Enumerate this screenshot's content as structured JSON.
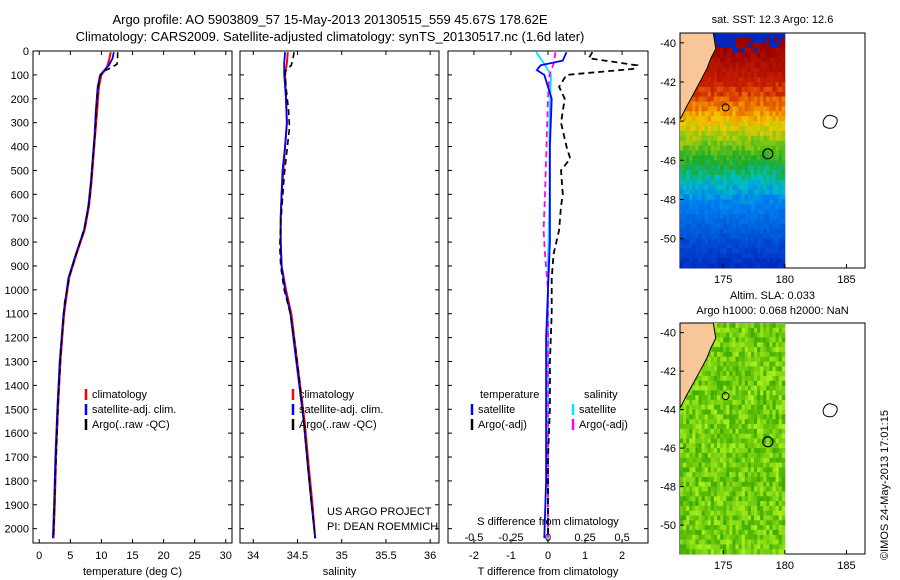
{
  "header": {
    "line1": "Argo profile: AO 5903809_57 15-May-2013 20130515_559 45.67S 178.62E",
    "line2": "Climatology: CARS2009. Satellite-adjusted climatology: synTS_20130517.nc (1.6d later)"
  },
  "credit": {
    "project": "US ARGO PROJECT",
    "pi": "PI: DEAN ROEMMICH",
    "imos": "©IMOS 24-May-2013 17:01:15"
  },
  "depth_ticks": [
    0,
    100,
    200,
    300,
    400,
    500,
    600,
    700,
    800,
    900,
    1000,
    1100,
    1200,
    1300,
    1400,
    1500,
    1600,
    1700,
    1800,
    1900,
    2000
  ],
  "colors": {
    "climatology": "#ff0000",
    "satellite": "#0000ff",
    "argo": "#000000",
    "sal_satellite": "#00e5ff",
    "sal_argo": "#ff00ff"
  },
  "chart_data": [
    {
      "type": "line",
      "xlabel": "temperature (deg C)",
      "x_ticks": [
        0,
        5,
        10,
        15,
        20,
        25,
        30
      ],
      "xlim": [
        -1,
        31
      ],
      "ylim": [
        2060,
        0
      ],
      "legend": [
        "climatology",
        "satellite-adj. clim.",
        "Argo(..raw -QC)"
      ],
      "series": [
        {
          "name": "climatology",
          "points": [
            [
              11.5,
              5
            ],
            [
              11.3,
              30
            ],
            [
              11.0,
              60
            ],
            [
              10.6,
              80
            ],
            [
              10.0,
              100
            ],
            [
              9.6,
              150
            ],
            [
              9.3,
              250
            ],
            [
              9.0,
              350
            ],
            [
              8.7,
              450
            ],
            [
              8.4,
              550
            ],
            [
              8.0,
              650
            ],
            [
              7.3,
              750
            ],
            [
              6.0,
              850
            ],
            [
              4.8,
              950
            ],
            [
              4.0,
              1100
            ],
            [
              3.4,
              1300
            ],
            [
              3.0,
              1500
            ],
            [
              2.7,
              1700
            ],
            [
              2.5,
              1900
            ],
            [
              2.3,
              2040
            ]
          ]
        },
        {
          "name": "satellite-adj. clim.",
          "points": [
            [
              12.0,
              5
            ],
            [
              11.8,
              30
            ],
            [
              11.2,
              60
            ],
            [
              10.5,
              80
            ],
            [
              9.8,
              100
            ],
            [
              9.4,
              150
            ],
            [
              9.1,
              250
            ],
            [
              8.9,
              350
            ],
            [
              8.6,
              450
            ],
            [
              8.3,
              550
            ],
            [
              7.9,
              650
            ],
            [
              7.2,
              750
            ],
            [
              5.9,
              850
            ],
            [
              4.7,
              950
            ],
            [
              3.9,
              1100
            ],
            [
              3.3,
              1300
            ],
            [
              2.9,
              1500
            ],
            [
              2.6,
              1700
            ],
            [
              2.4,
              1900
            ],
            [
              2.2,
              2040
            ]
          ]
        },
        {
          "name": "Argo(..raw -QC)",
          "points": [
            [
              12.6,
              5
            ],
            [
              12.6,
              30
            ],
            [
              12.5,
              55
            ],
            [
              11.6,
              70
            ],
            [
              10.3,
              85
            ],
            [
              9.7,
              110
            ],
            [
              9.3,
              200
            ],
            [
              9.1,
              300
            ],
            [
              8.8,
              400
            ],
            [
              8.5,
              500
            ],
            [
              8.1,
              620
            ],
            [
              7.4,
              730
            ],
            [
              6.2,
              830
            ],
            [
              5.0,
              930
            ],
            [
              4.1,
              1050
            ],
            [
              3.5,
              1250
            ],
            [
              3.1,
              1450
            ],
            [
              2.8,
              1650
            ],
            [
              2.5,
              1850
            ],
            [
              2.3,
              2040
            ]
          ]
        }
      ]
    },
    {
      "type": "line",
      "xlabel": "salinity",
      "x_ticks": [
        34,
        34.5,
        35,
        35.5,
        36
      ],
      "xlim": [
        33.85,
        36.1
      ],
      "ylim": [
        2060,
        0
      ],
      "legend": [
        "climatology",
        "satellite-adj. clim.",
        "Argo(..raw -QC)"
      ],
      "series": [
        {
          "name": "climatology",
          "points": [
            [
              34.39,
              5
            ],
            [
              34.38,
              50
            ],
            [
              34.36,
              100
            ],
            [
              34.37,
              200
            ],
            [
              34.38,
              300
            ],
            [
              34.36,
              400
            ],
            [
              34.34,
              500
            ],
            [
              34.32,
              600
            ],
            [
              34.31,
              700
            ],
            [
              34.31,
              800
            ],
            [
              34.32,
              900
            ],
            [
              34.37,
              1000
            ],
            [
              34.43,
              1100
            ],
            [
              34.48,
              1250
            ],
            [
              34.53,
              1400
            ],
            [
              34.58,
              1550
            ],
            [
              34.63,
              1750
            ],
            [
              34.67,
              1900
            ],
            [
              34.7,
              2040
            ]
          ]
        },
        {
          "name": "satellite-adj. clim.",
          "points": [
            [
              34.36,
              5
            ],
            [
              34.35,
              50
            ],
            [
              34.35,
              100
            ],
            [
              34.37,
              200
            ],
            [
              34.38,
              300
            ],
            [
              34.36,
              400
            ],
            [
              34.33,
              500
            ],
            [
              34.32,
              600
            ],
            [
              34.31,
              700
            ],
            [
              34.31,
              800
            ],
            [
              34.32,
              900
            ],
            [
              34.36,
              1000
            ],
            [
              34.42,
              1100
            ],
            [
              34.47,
              1250
            ],
            [
              34.52,
              1400
            ],
            [
              34.57,
              1550
            ],
            [
              34.62,
              1750
            ],
            [
              34.66,
              1900
            ],
            [
              34.7,
              2040
            ]
          ]
        },
        {
          "name": "Argo(..raw -QC)",
          "points": [
            [
              34.46,
              5
            ],
            [
              34.45,
              30
            ],
            [
              34.43,
              60
            ],
            [
              34.36,
              85
            ],
            [
              34.37,
              150
            ],
            [
              34.4,
              250
            ],
            [
              34.41,
              320
            ],
            [
              34.38,
              420
            ],
            [
              34.35,
              520
            ],
            [
              34.33,
              620
            ],
            [
              34.31,
              720
            ],
            [
              34.3,
              820
            ],
            [
              34.31,
              900
            ],
            [
              34.35,
              1000
            ],
            [
              34.42,
              1100
            ],
            [
              34.48,
              1250
            ],
            [
              34.53,
              1400
            ],
            [
              34.57,
              1550
            ],
            [
              34.62,
              1750
            ],
            [
              34.66,
              1900
            ],
            [
              34.7,
              2040
            ]
          ]
        }
      ]
    },
    {
      "type": "line",
      "xlabel": "T difference from climatology",
      "top_label": "S difference from climatology",
      "x_ticks": [
        -2,
        -1,
        0,
        1,
        2
      ],
      "x_ticks_sal": [
        "-0.5",
        "-0.25",
        "0",
        "0.25",
        "0.5"
      ],
      "xlim": [
        -2.7,
        2.7
      ],
      "ylim": [
        2060,
        0
      ],
      "legend_groups": [
        {
          "title": "temperature",
          "items": [
            "satellite",
            "Argo(-adj)"
          ]
        },
        {
          "title": "salinity",
          "items": [
            "satellite",
            "Argo(-adj)"
          ]
        }
      ],
      "series": [
        {
          "name": "satellite",
          "group": "temperature",
          "points": [
            [
              0.5,
              5
            ],
            [
              0.4,
              40
            ],
            [
              -0.2,
              60
            ],
            [
              -0.3,
              80
            ],
            [
              -0.1,
              100
            ],
            [
              0.1,
              200
            ],
            [
              0.05,
              400
            ],
            [
              0.05,
              600
            ],
            [
              0.05,
              800
            ],
            [
              0.0,
              1000
            ],
            [
              -0.05,
              1200
            ],
            [
              -0.05,
              1400
            ],
            [
              -0.05,
              1600
            ],
            [
              -0.05,
              1800
            ],
            [
              -0.1,
              2040
            ]
          ]
        },
        {
          "name": "Argo(-adj)",
          "group": "temperature",
          "points": [
            [
              1.2,
              5
            ],
            [
              1.1,
              30
            ],
            [
              2.4,
              60
            ],
            [
              2.3,
              75
            ],
            [
              0.5,
              100
            ],
            [
              0.3,
              150
            ],
            [
              0.45,
              200
            ],
            [
              0.35,
              300
            ],
            [
              0.5,
              400
            ],
            [
              0.6,
              450
            ],
            [
              0.35,
              500
            ],
            [
              0.4,
              600
            ],
            [
              0.35,
              650
            ],
            [
              0.3,
              750
            ],
            [
              0.15,
              850
            ],
            [
              0.1,
              950
            ],
            [
              0.1,
              1100
            ],
            [
              0.05,
              1300
            ],
            [
              0.05,
              1500
            ],
            [
              0.0,
              1700
            ],
            [
              0.0,
              2040
            ]
          ]
        },
        {
          "name": "satellite",
          "group": "salinity",
          "points": [
            [
              -0.08,
              5
            ],
            [
              -0.03,
              50
            ],
            [
              0.02,
              100
            ],
            [
              0.01,
              300
            ],
            [
              0.01,
              600
            ],
            [
              0.0,
              900
            ],
            [
              0.0,
              1200
            ],
            [
              0.0,
              1500
            ],
            [
              0.0,
              1800
            ],
            [
              0.0,
              2040
            ]
          ]
        },
        {
          "name": "Argo(-adj)",
          "group": "salinity",
          "points": [
            [
              0.05,
              5
            ],
            [
              0.04,
              50
            ],
            [
              0.01,
              100
            ],
            [
              0.0,
              200
            ],
            [
              -0.01,
              400
            ],
            [
              -0.02,
              600
            ],
            [
              -0.03,
              750
            ],
            [
              -0.02,
              850
            ],
            [
              0.0,
              1000
            ],
            [
              0.0,
              1300
            ],
            [
              0.0,
              1600
            ],
            [
              0.0,
              2040
            ]
          ]
        }
      ]
    },
    {
      "type": "heatmap",
      "title": "sat. SST: 12.3  Argo: 12.6",
      "x_ticks": [
        175,
        180,
        185
      ],
      "y_ticks": [
        -40,
        -42,
        -44,
        -46,
        -48,
        -50
      ],
      "xlim": [
        171.5,
        186.5
      ],
      "ylim": [
        -51.5,
        -39.5
      ],
      "data_extent_lon": [
        171.5,
        180
      ],
      "profile_location": [
        178.62,
        -45.67
      ]
    },
    {
      "type": "heatmap",
      "title": "Altim. SLA: 0.033",
      "subtitle": "Argo h1000: 0.068  h2000: NaN",
      "x_ticks": [
        175,
        180,
        185
      ],
      "y_ticks": [
        -40,
        -42,
        -44,
        -46,
        -48,
        -50
      ],
      "xlim": [
        171.5,
        186.5
      ],
      "ylim": [
        -51.5,
        -39.5
      ],
      "data_extent_lon": [
        171.5,
        180
      ],
      "profile_location": [
        178.62,
        -45.67
      ]
    }
  ]
}
